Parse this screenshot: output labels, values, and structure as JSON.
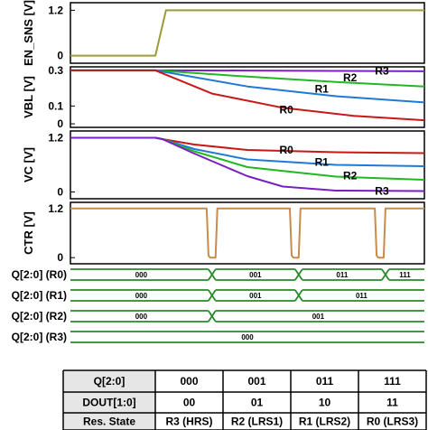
{
  "chart_data": [
    {
      "type": "line",
      "ylabel": "EN_SNS [V]",
      "yticks": [
        "1.2",
        "0"
      ],
      "ylim": [
        -0.2,
        1.4
      ],
      "series": [
        {
          "color": "#9b9b3a",
          "x": [
            0,
            0.24,
            0.27,
            1
          ],
          "values": [
            0,
            0,
            1.2,
            1.2
          ]
        }
      ]
    },
    {
      "type": "line",
      "ylabel": "VBL [V]",
      "yticks": [
        "0.3",
        "0.1",
        "0"
      ],
      "ylim": [
        -0.02,
        0.32
      ],
      "series": [
        {
          "name": "R3",
          "color": "#7a1fc2",
          "x": [
            0,
            0.24,
            0.5,
            0.75,
            1
          ],
          "values": [
            0.3,
            0.3,
            0.299,
            0.297,
            0.295
          ]
        },
        {
          "name": "R2",
          "color": "#22b822",
          "x": [
            0,
            0.24,
            0.5,
            0.75,
            1
          ],
          "values": [
            0.3,
            0.3,
            0.265,
            0.235,
            0.21
          ]
        },
        {
          "name": "R1",
          "color": "#1f7ad6",
          "x": [
            0,
            0.24,
            0.5,
            0.75,
            1
          ],
          "values": [
            0.3,
            0.3,
            0.21,
            0.155,
            0.12
          ]
        },
        {
          "name": "R0",
          "color": "#c81818",
          "x": [
            0,
            0.24,
            0.4,
            0.6,
            0.8,
            1
          ],
          "values": [
            0.3,
            0.3,
            0.17,
            0.09,
            0.045,
            0.02
          ]
        }
      ]
    },
    {
      "type": "line",
      "ylabel": "VC [V]",
      "yticks": [
        "1.2",
        "0"
      ],
      "ylim": [
        -0.15,
        1.35
      ],
      "series": [
        {
          "name": "R0",
          "color": "#c81818",
          "x": [
            0,
            0.24,
            0.26,
            0.35,
            0.5,
            0.75,
            1
          ],
          "values": [
            1.2,
            1.2,
            1.17,
            1.05,
            0.93,
            0.88,
            0.86
          ]
        },
        {
          "name": "R1",
          "color": "#1f7ad6",
          "x": [
            0,
            0.24,
            0.26,
            0.35,
            0.5,
            0.75,
            1
          ],
          "values": [
            1.2,
            1.2,
            1.17,
            0.95,
            0.72,
            0.6,
            0.57
          ]
        },
        {
          "name": "R2",
          "color": "#22b822",
          "x": [
            0,
            0.24,
            0.26,
            0.35,
            0.5,
            0.75,
            1
          ],
          "values": [
            1.2,
            1.2,
            1.17,
            0.9,
            0.55,
            0.34,
            0.27
          ]
        },
        {
          "name": "R3",
          "color": "#7a1fc2",
          "x": [
            0,
            0.24,
            0.26,
            0.35,
            0.5,
            0.6,
            0.75,
            1
          ],
          "values": [
            1.2,
            1.2,
            1.17,
            0.85,
            0.35,
            0.12,
            0.03,
            0.02
          ]
        }
      ]
    },
    {
      "type": "line",
      "ylabel": "CTR [V]",
      "yticks": [
        "1.2",
        "0"
      ],
      "ylim": [
        -0.15,
        1.35
      ],
      "series": [
        {
          "color": "#c98a4a",
          "x": [
            0,
            0.385,
            0.39,
            0.395,
            0.41,
            0.415,
            0.62,
            0.625,
            0.63,
            0.645,
            0.65,
            0.86,
            0.865,
            0.87,
            0.885,
            0.89,
            1
          ],
          "values": [
            1.2,
            1.2,
            0.05,
            0.0,
            0.0,
            1.2,
            1.2,
            0.05,
            0.0,
            0.0,
            1.2,
            1.2,
            0.05,
            0.0,
            0.0,
            1.2,
            1.2
          ]
        }
      ]
    }
  ],
  "bus_rows": [
    {
      "label": "Q[2:0] (R0)",
      "segments": [
        {
          "end": 0.4,
          "value": "000"
        },
        {
          "end": 0.645,
          "value": "001"
        },
        {
          "end": 0.89,
          "value": "011"
        },
        {
          "end": 1.0,
          "value": "111"
        }
      ]
    },
    {
      "label": "Q[2:0] (R1)",
      "segments": [
        {
          "end": 0.4,
          "value": "000"
        },
        {
          "end": 0.645,
          "value": "001"
        },
        {
          "end": 1.0,
          "value": "011"
        }
      ]
    },
    {
      "label": "Q[2:0] (R2)",
      "segments": [
        {
          "end": 0.4,
          "value": "000"
        },
        {
          "end": 1.0,
          "value": "001"
        }
      ]
    },
    {
      "label": "Q[2:0] (R3)",
      "segments": [
        {
          "end": 1.0,
          "value": "000"
        }
      ]
    }
  ],
  "table": {
    "rows": [
      [
        "Q[2:0]",
        "000",
        "001",
        "011",
        "111"
      ],
      [
        "DOUT[1:0]",
        "00",
        "01",
        "10",
        "11"
      ],
      [
        "Res. State",
        "R3 (HRS)",
        "R2 (LRS1)",
        "R1 (LRS2)",
        "R0 (LRS3)"
      ]
    ]
  },
  "colors": {
    "bus": "#2a8a2a",
    "header_fill": "#e6e6e6"
  }
}
